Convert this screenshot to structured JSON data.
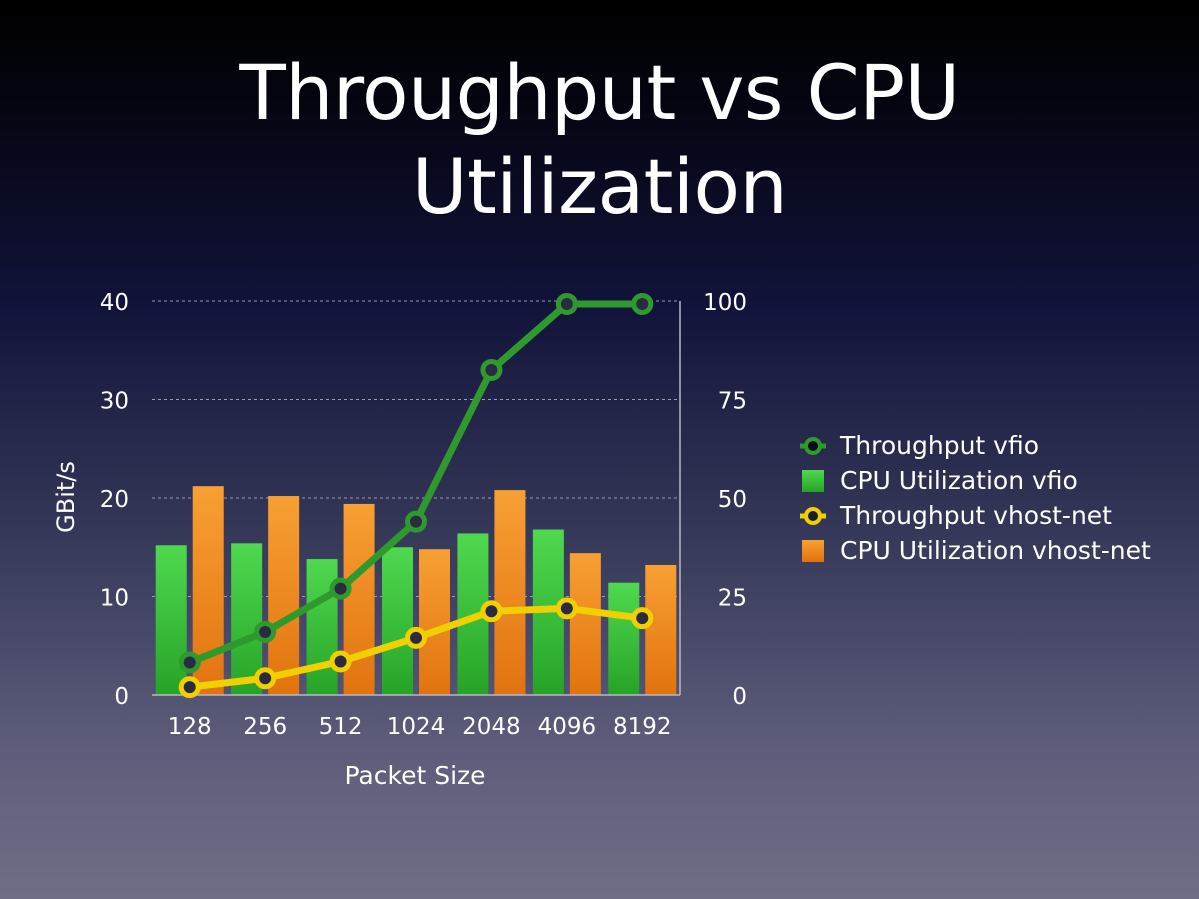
{
  "slide": {
    "title_line1": "Throughput vs CPU",
    "title_line2": "Utilization"
  },
  "legend": {
    "items": [
      {
        "label": "Throughput vfio",
        "kind": "line",
        "color": "#2e9a2e"
      },
      {
        "label": "CPU Utilization vfio",
        "kind": "bar",
        "color": "#3ec83e"
      },
      {
        "label": "Throughput vhost-net",
        "kind": "line",
        "color": "#f0d000"
      },
      {
        "label": "CPU Utilization vhost-net",
        "kind": "bar",
        "color": "#f08a1a"
      }
    ]
  },
  "chart_data": {
    "type": "bar",
    "categories": [
      "128",
      "256",
      "512",
      "1024",
      "2048",
      "4096",
      "8192"
    ],
    "xlabel": "Packet Size",
    "ylabel": "GBit/s",
    "ylim": [
      0,
      40
    ],
    "y_ticks": [
      "0",
      "10",
      "20",
      "30",
      "40"
    ],
    "y2lim": [
      0,
      100
    ],
    "y2_ticks": [
      "0",
      "25",
      "50",
      "75",
      "100"
    ],
    "grid": true,
    "legend_position": "right",
    "series": [
      {
        "name": "CPU Utilization vfio",
        "kind": "bar",
        "axis": "right",
        "color": "#3ec83e",
        "values": [
          38,
          38.5,
          34.5,
          37.5,
          41,
          42,
          28.5
        ]
      },
      {
        "name": "CPU Utilization vhost-net",
        "kind": "bar",
        "axis": "right",
        "color": "#f08a1a",
        "values": [
          53,
          50.5,
          48.5,
          37,
          52,
          36,
          33
        ]
      },
      {
        "name": "Throughput vfio",
        "kind": "line",
        "axis": "left",
        "color": "#2e9a2e",
        "values": [
          3.3,
          6.4,
          10.8,
          17.6,
          33.0,
          39.7,
          39.7
        ]
      },
      {
        "name": "Throughput vhost-net",
        "kind": "line",
        "axis": "left",
        "color": "#f0d000",
        "values": [
          0.8,
          1.7,
          3.4,
          5.8,
          8.5,
          8.8,
          7.8
        ]
      }
    ]
  }
}
